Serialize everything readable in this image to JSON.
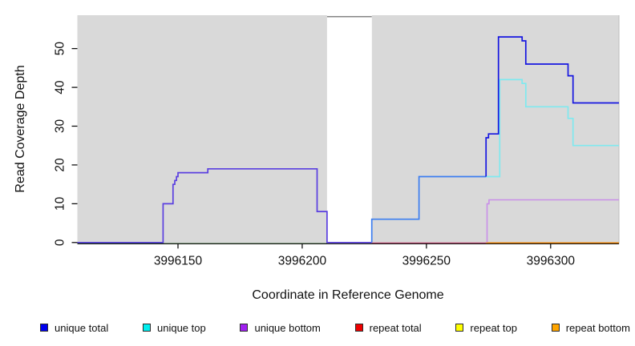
{
  "chart_data": {
    "type": "line",
    "subtype": "step",
    "title": "",
    "xlabel": "Coordinate in Reference Genome",
    "ylabel": "Read Coverage Depth",
    "xlim": [
      3996109.5,
      3996327.5
    ],
    "ylim": [
      0,
      58.6
    ],
    "x_ticks": [
      3996150,
      3996200,
      3996250,
      3996300
    ],
    "y_ticks": [
      0,
      10,
      20,
      30,
      40,
      50
    ],
    "grid": false,
    "legend_position": "bottom",
    "plot_background": "#d9d9d9",
    "masked_region": {
      "x0": 3996210,
      "x1": 3996228,
      "color": "#ffffff",
      "top_border": "#858585"
    },
    "series": [
      {
        "name": "unique total",
        "color": "#0000EE",
        "steps": [
          [
            3996109,
            0
          ],
          [
            3996144,
            10
          ],
          [
            3996148,
            15
          ],
          [
            3996149,
            17
          ],
          [
            3996150,
            18
          ],
          [
            3996162,
            19
          ],
          [
            3996206,
            8
          ],
          [
            3996210,
            0
          ],
          [
            3996228,
            6
          ],
          [
            3996247,
            17
          ],
          [
            3996274,
            27
          ],
          [
            3996275,
            28
          ],
          [
            3996279,
            53
          ],
          [
            3996288,
            52
          ],
          [
            3996290,
            46
          ],
          [
            3996307,
            43
          ],
          [
            3996309,
            36
          ],
          [
            3996327,
            36
          ]
        ]
      },
      {
        "name": "unique top",
        "color": "#00EEEE",
        "steps": [
          [
            3996109,
            0
          ],
          [
            3996228,
            6
          ],
          [
            3996247,
            17
          ],
          [
            3996279,
            42
          ],
          [
            3996288,
            41
          ],
          [
            3996290,
            35
          ],
          [
            3996307,
            32
          ],
          [
            3996309,
            25
          ],
          [
            3996327,
            25
          ]
        ]
      },
      {
        "name": "unique bottom",
        "color": "#A020F0",
        "steps": [
          [
            3996109,
            0
          ],
          [
            3996144,
            10
          ],
          [
            3996148,
            15
          ],
          [
            3996149,
            17
          ],
          [
            3996150,
            18
          ],
          [
            3996162,
            19
          ],
          [
            3996206,
            8
          ],
          [
            3996210,
            0
          ],
          [
            3996274,
            10
          ],
          [
            3996275,
            11
          ],
          [
            3996327,
            11
          ]
        ]
      },
      {
        "name": "repeat total",
        "color": "#EE0000",
        "steps": [
          [
            3996109,
            0
          ],
          [
            3996327,
            0
          ]
        ]
      },
      {
        "name": "repeat top",
        "color": "#FFFF00",
        "steps": [
          [
            3996109,
            0
          ],
          [
            3996327,
            0
          ]
        ]
      },
      {
        "name": "repeat bottom",
        "color": "#FFA500",
        "steps": [
          [
            3996109,
            0
          ],
          [
            3996327,
            0
          ]
        ]
      }
    ],
    "render_lines": [
      {
        "name": "baseline-left-green",
        "color": "#6abf69",
        "width": 1.3,
        "py_offset": 1.3,
        "points": [
          [
            3996109.5,
            0
          ],
          [
            3996210,
            0
          ]
        ]
      },
      {
        "name": "baseline-mid-pink",
        "color": "#d6507f",
        "width": 1.3,
        "py_offset": 0.6,
        "points": [
          [
            3996228,
            0
          ],
          [
            3996274,
            0
          ]
        ]
      },
      {
        "name": "baseline-right-orange",
        "color": "#ff8c00",
        "width": 1.8,
        "py_offset": 0.6,
        "points": [
          [
            3996274,
            0
          ],
          [
            3996327.5,
            0
          ]
        ]
      },
      {
        "name": "unique-total-bottom-overlap-left",
        "color": "#5a3fe0",
        "width": 1.7,
        "py_offset": 0,
        "points": [
          [
            3996109.5,
            0
          ],
          [
            3996144,
            0
          ],
          [
            3996144,
            10
          ],
          [
            3996148,
            10
          ],
          [
            3996148,
            15
          ],
          [
            3996148.7,
            15
          ],
          [
            3996148.7,
            16
          ],
          [
            3996149.4,
            16
          ],
          [
            3996149.4,
            17
          ],
          [
            3996150,
            17
          ],
          [
            3996150,
            18
          ],
          [
            3996162,
            18
          ],
          [
            3996162,
            19
          ],
          [
            3996206,
            19
          ],
          [
            3996206,
            8
          ],
          [
            3996210,
            8
          ],
          [
            3996210,
            0
          ],
          [
            3996228,
            0
          ]
        ]
      },
      {
        "name": "unique-total-top-overlap-right",
        "color": "#3c7ef0",
        "width": 1.7,
        "py_offset": 0,
        "points": [
          [
            3996228,
            0
          ],
          [
            3996228,
            6
          ],
          [
            3996247,
            6
          ],
          [
            3996247,
            17
          ],
          [
            3996274,
            17
          ]
        ]
      },
      {
        "name": "unique-top-line",
        "color": "#7fe9ef",
        "width": 1.7,
        "py_offset": 0,
        "points": [
          [
            3996274,
            17
          ],
          [
            3996279.5,
            17
          ],
          [
            3996279.5,
            42
          ],
          [
            3996288.5,
            42
          ],
          [
            3996288.5,
            41
          ],
          [
            3996290,
            41
          ],
          [
            3996290,
            35
          ],
          [
            3996307,
            35
          ],
          [
            3996307,
            32
          ],
          [
            3996309,
            32
          ],
          [
            3996309,
            25
          ],
          [
            3996327.5,
            25
          ]
        ]
      },
      {
        "name": "unique-bottom-line",
        "color": "#c98fe8",
        "width": 1.6,
        "py_offset": 0,
        "points": [
          [
            3996274.4,
            0
          ],
          [
            3996274.4,
            10
          ],
          [
            3996275.2,
            10
          ],
          [
            3996275.2,
            11
          ],
          [
            3996327.5,
            11
          ]
        ]
      },
      {
        "name": "unique-total-line",
        "color": "#1616e0",
        "width": 1.7,
        "py_offset": 0,
        "points": [
          [
            3996274,
            17
          ],
          [
            3996274,
            27
          ],
          [
            3996275,
            27
          ],
          [
            3996275,
            28
          ],
          [
            3996279,
            28
          ],
          [
            3996279,
            53
          ],
          [
            3996288.5,
            53
          ],
          [
            3996288.5,
            52
          ],
          [
            3996290,
            52
          ],
          [
            3996290,
            46
          ],
          [
            3996307,
            46
          ],
          [
            3996307,
            43
          ],
          [
            3996309,
            43
          ],
          [
            3996309,
            36
          ],
          [
            3996327.5,
            36
          ]
        ]
      }
    ]
  },
  "legend": {
    "items": [
      {
        "label": "unique total",
        "color": "#0000EE"
      },
      {
        "label": "unique top",
        "color": "#00EEEE"
      },
      {
        "label": "unique bottom",
        "color": "#A020F0"
      },
      {
        "label": "repeat total",
        "color": "#EE0000"
      },
      {
        "label": "repeat top",
        "color": "#FFFF00"
      },
      {
        "label": "repeat bottom",
        "color": "#FFA500"
      }
    ]
  }
}
